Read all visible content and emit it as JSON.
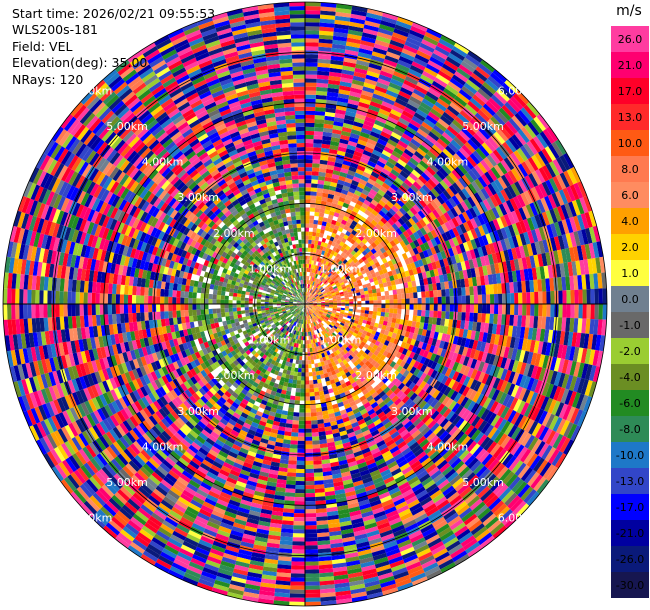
{
  "header": {
    "start_time": "Start time: 2026/02/21 09:55:53",
    "station": "WLS200s-181",
    "field": "Field: VEL",
    "elevation": "Elevation(deg): 35.00",
    "nrays": "NRays: 120"
  },
  "colorbar": {
    "unit": "m/s",
    "ticks": [
      "26.0",
      "21.0",
      "17.0",
      "13.0",
      "10.0",
      "8.0",
      "6.0",
      "4.0",
      "2.0",
      "1.0",
      "0.0",
      "-1.0",
      "-2.0",
      "-4.0",
      "-6.0",
      "-8.0",
      "-10.0",
      "-13.0",
      "-17.0",
      "-21.0",
      "-26.0",
      "-30.0"
    ],
    "colors": [
      "#ff3ca0",
      "#ff0070",
      "#ff0028",
      "#ff2a2a",
      "#ff5a14",
      "#ff7a50",
      "#ff8c60",
      "#ffa000",
      "#ffd200",
      "#ffff40",
      "#708090",
      "#696969",
      "#9acd32",
      "#6b8e23",
      "#228b22",
      "#2e8b57",
      "#1e78c8",
      "#3246c8",
      "#0000ff",
      "#0000a0",
      "#0a1a7a",
      "#161650"
    ]
  },
  "chart_data": {
    "type": "heatmap",
    "projection": "polar PPI",
    "field": "VEL",
    "units": "m/s",
    "n_rays": 120,
    "elevation_deg": 35.0,
    "range_rings_km": [
      1.0,
      2.0,
      3.0,
      4.0,
      5.0,
      6.0
    ],
    "ring_labels": [
      "1.00km",
      "2.00km",
      "3.00km",
      "4.00km",
      "5.00km",
      "6.00km"
    ],
    "max_range_km": 6.0,
    "value_range": [
      -30.0,
      26.0
    ],
    "regions": [
      {
        "description": "near-field western sector",
        "values_m_s": [
          -8.0,
          -6.0,
          -4.0,
          -2.0,
          0.0
        ]
      },
      {
        "description": "near-field eastern sector",
        "values_m_s": [
          2.0,
          4.0,
          6.0,
          8.0
        ]
      },
      {
        "description": "outer range gates",
        "values_m_s": [
          -30.0,
          26.0
        ]
      }
    ]
  }
}
